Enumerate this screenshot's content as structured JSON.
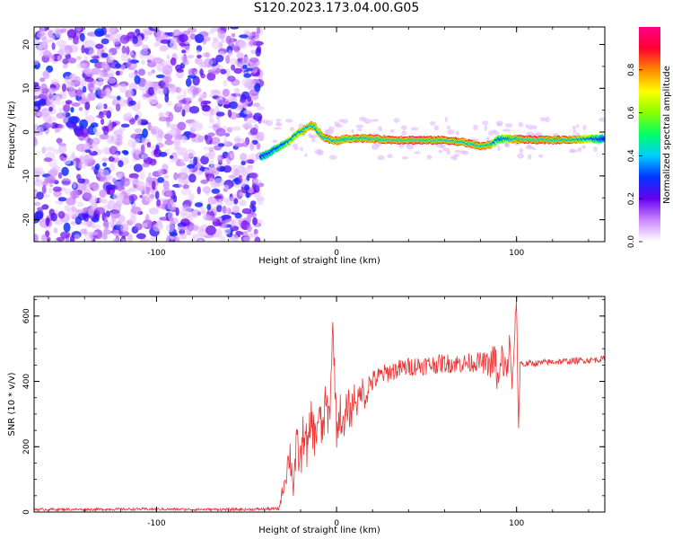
{
  "figure_title": "S120.2023.173.04.00.G05",
  "chart_data": [
    {
      "type": "heatmap",
      "xlabel": "Height of straight line (km)",
      "ylabel": "Frequency (Hz)",
      "xlim": [
        -168,
        149
      ],
      "ylim": [
        -25,
        24
      ],
      "x_ticks": [
        -100,
        0,
        100
      ],
      "y_ticks": [
        -20,
        -10,
        0,
        10,
        20
      ],
      "colorbar": {
        "label": "Normalized spectral amplitude",
        "range": [
          0,
          1
        ],
        "ticks": [
          0.0,
          0.2,
          0.4,
          0.6,
          0.8
        ],
        "colormap": [
          "#ffffff",
          "#cc88ff",
          "#6600ee",
          "#0033ff",
          "#00ccff",
          "#00ff66",
          "#88ff00",
          "#ffff00",
          "#ff8800",
          "#ff0033",
          "#ff0088"
        ]
      },
      "noise_region": {
        "x_range": [
          -168,
          -42
        ],
        "y_range": [
          -25,
          24
        ],
        "description_level": "low amplitude 0.05-0.3"
      },
      "dominant_frequency_track": {
        "x": [
          -42,
          -38,
          -34,
          -30,
          -26,
          -22,
          -18,
          -14,
          -12,
          -10,
          -8,
          -4,
          0,
          4,
          10,
          20,
          30,
          40,
          50,
          60,
          70,
          80,
          85,
          90,
          95,
          100,
          110,
          120,
          130,
          140,
          148
        ],
        "y": [
          -5.5,
          -5.0,
          -3.8,
          -3.0,
          -2.0,
          -0.5,
          0.5,
          1.5,
          1.2,
          0.0,
          -1.0,
          -1.7,
          -2.0,
          -1.6,
          -1.4,
          -1.5,
          -1.8,
          -1.8,
          -1.9,
          -1.8,
          -2.3,
          -3.2,
          -3.0,
          -1.6,
          -1.5,
          -1.6,
          -1.8,
          -1.8,
          -1.7,
          -1.6,
          -1.5
        ],
        "amplitude": [
          0.45,
          0.5,
          0.55,
          0.6,
          0.7,
          0.75,
          0.8,
          0.85,
          0.85,
          0.8,
          0.85,
          0.9,
          0.9,
          0.85,
          0.9,
          0.9,
          0.9,
          0.95,
          0.95,
          0.9,
          0.9,
          0.9,
          0.85,
          0.6,
          0.7,
          0.9,
          0.95,
          0.95,
          0.9,
          0.7,
          0.5
        ]
      }
    },
    {
      "type": "line",
      "xlabel": "Height of straight line (km)",
      "ylabel": "SNR (10 * v/v)",
      "xlim": [
        -168,
        149
      ],
      "ylim": [
        0,
        660
      ],
      "x_ticks": [
        -100,
        0,
        100
      ],
      "y_ticks": [
        0,
        200,
        400,
        600
      ],
      "line_color": "#ee3333",
      "series": [
        {
          "x": [
            -168,
            -140,
            -110,
            -80,
            -50,
            -32,
            -28,
            -26,
            -24,
            -22,
            -20,
            -18,
            -16,
            -14,
            -12,
            -10,
            -8,
            -6,
            -4,
            -2,
            0,
            2,
            4,
            6,
            8,
            10,
            12,
            14,
            16,
            18,
            20,
            25,
            30,
            40,
            50,
            60,
            70,
            80,
            85,
            88,
            90,
            92,
            94,
            96,
            98,
            99,
            100,
            101,
            102,
            104,
            106,
            110,
            120,
            130,
            140,
            148
          ],
          "y": [
            8,
            8,
            9,
            8,
            8,
            10,
            120,
            180,
            90,
            200,
            150,
            260,
            180,
            290,
            220,
            300,
            240,
            330,
            280,
            570,
            250,
            310,
            240,
            330,
            300,
            360,
            330,
            380,
            350,
            390,
            400,
            420,
            430,
            445,
            450,
            455,
            455,
            460,
            450,
            470,
            380,
            480,
            420,
            500,
            380,
            560,
            660,
            240,
            460,
            450,
            455,
            455,
            460,
            462,
            465,
            468
          ],
          "noise_amplitude": [
            4,
            4,
            4,
            4,
            4,
            5,
            40,
            60,
            60,
            70,
            70,
            70,
            70,
            70,
            70,
            70,
            70,
            70,
            70,
            40,
            60,
            60,
            60,
            60,
            55,
            50,
            50,
            45,
            40,
            40,
            35,
            30,
            30,
            30,
            30,
            30,
            30,
            30,
            40,
            60,
            60,
            60,
            60,
            60,
            60,
            20,
            10,
            10,
            10,
            10,
            10,
            10,
            10,
            10,
            10,
            10
          ]
        }
      ]
    }
  ]
}
